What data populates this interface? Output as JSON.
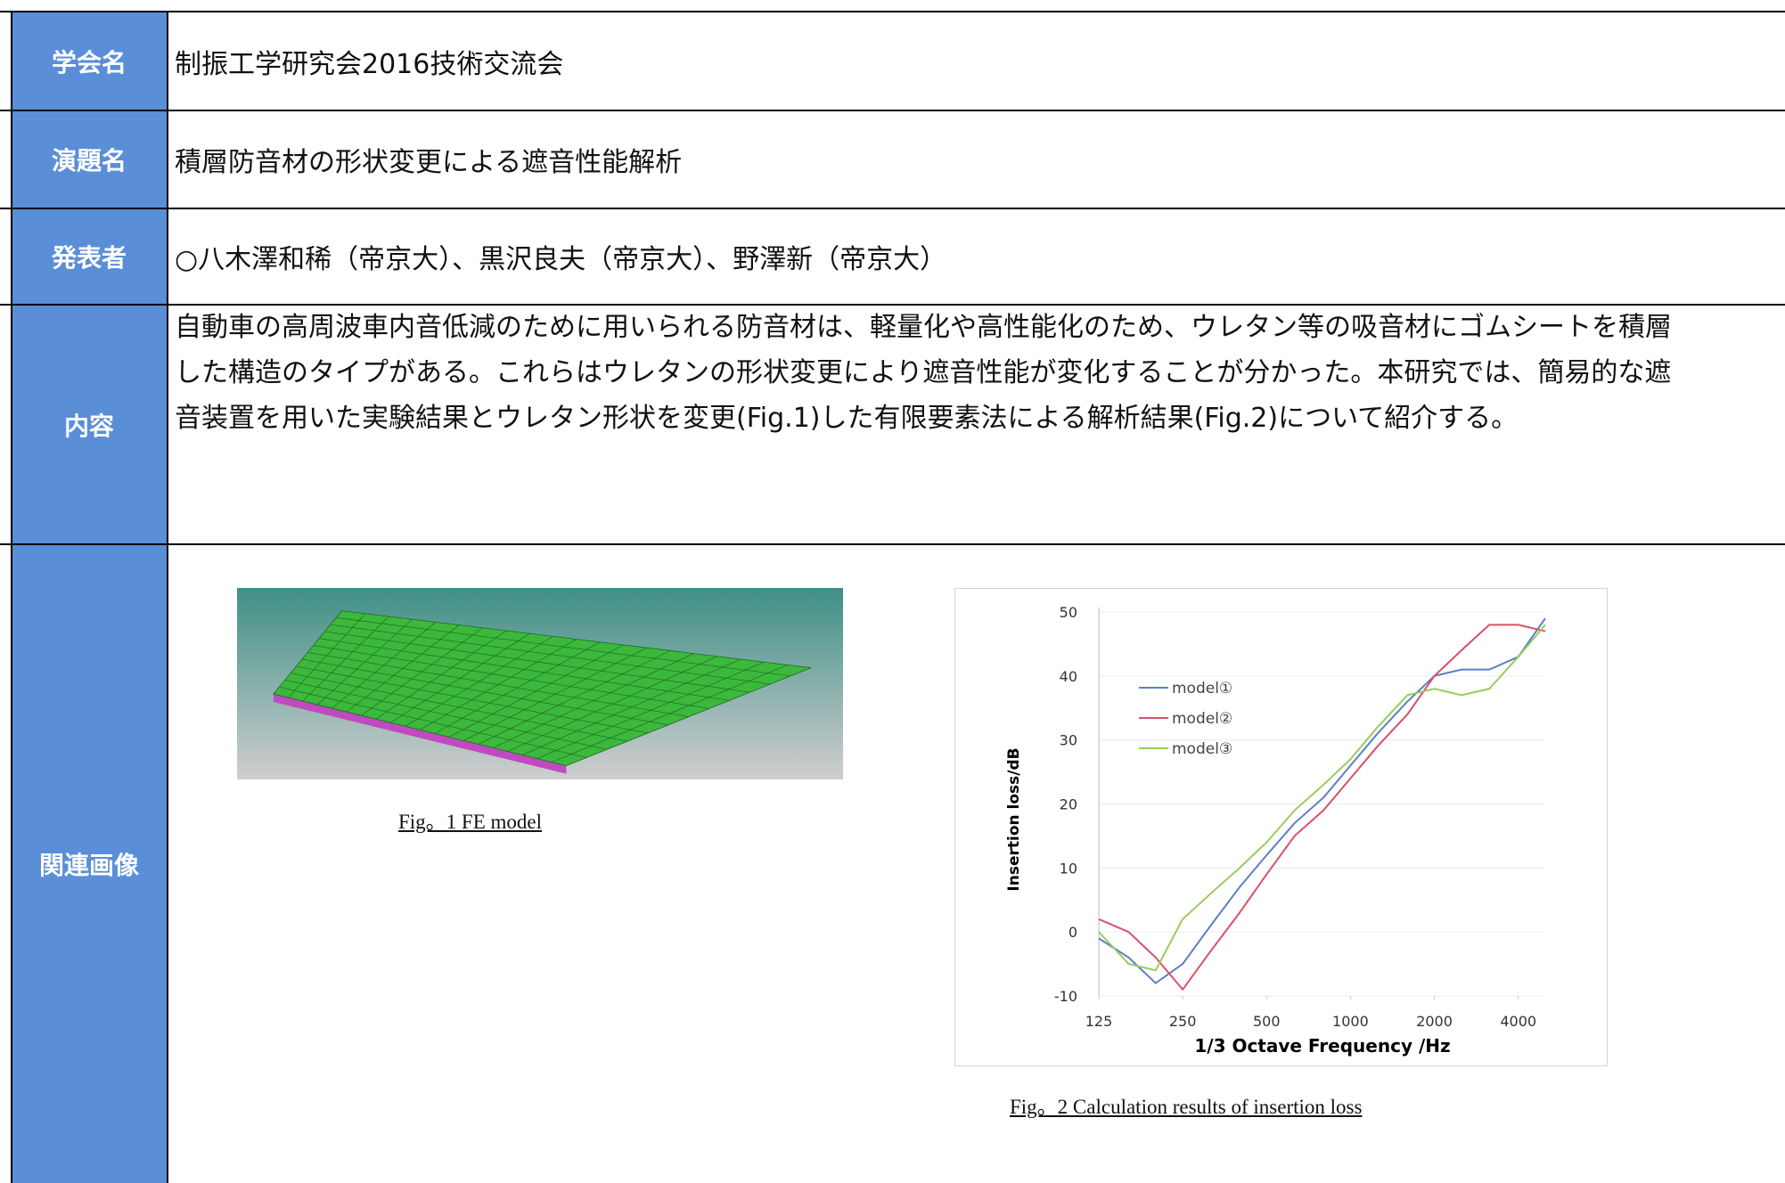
{
  "table": {
    "rows": [
      {
        "label": "学会名",
        "value": "制振工学研究会2016技術交流会"
      },
      {
        "label": "演題名",
        "value": "積層防音材の形状変更による遮音性能解析"
      },
      {
        "label": "発表者",
        "value": "○八木澤和稀（帝京大）、黒沢良夫（帝京大）、野澤新（帝京大）"
      },
      {
        "label": "内容",
        "value": [
          "自動車の高周波車内音低減のために用いられる防音材は、軽量化や高性能化のため、ウレタン等の吸音材にゴムシートを積層",
          "した構造のタイプがある。これらはウレタンの形状変更により遮音性能が変化することが分かった。本研究では、簡易的な遮",
          "音装置を用いた実験結果とウレタン形状を変更(Fig.1)した有限要素法による解析結果(Fig.2)について紹介する。"
        ]
      },
      {
        "label": "関連画像"
      }
    ]
  },
  "figures": [
    {
      "caption": "Fig。1 FE model"
    },
    {
      "caption": "Fig。2  Calculation results of insertion loss"
    }
  ],
  "chart_data": {
    "type": "line",
    "x_label": "1/3 Octave Frequency /Hz",
    "y_label": "Insertion loss/dB",
    "x": [
      125,
      160,
      200,
      250,
      315,
      400,
      500,
      630,
      800,
      1000,
      1250,
      1600,
      2000,
      2500,
      3150,
      4000,
      5000
    ],
    "xscale": "log",
    "xlim": [
      125,
      5000
    ],
    "xticks": [
      125,
      250,
      500,
      1000,
      2000,
      4000
    ],
    "ylim": [
      -10,
      50
    ],
    "yticks": [
      -10,
      0,
      10,
      20,
      30,
      40,
      50
    ],
    "grid": true,
    "legend": "upper-left",
    "series": [
      {
        "name": "model①",
        "color": "#5b7fc7",
        "values": [
          -1,
          -4,
          -8,
          -5,
          1,
          7,
          12,
          17,
          21,
          26,
          31,
          36,
          40,
          41,
          41,
          43,
          49
        ]
      },
      {
        "name": "model②",
        "color": "#d9506a",
        "values": [
          2,
          0,
          -4,
          -9,
          -3,
          3,
          9,
          15,
          19,
          24,
          29,
          34,
          40,
          44,
          48,
          48,
          47
        ]
      },
      {
        "name": "model③",
        "color": "#9acd5a",
        "values": [
          0,
          -5,
          -6,
          2,
          6,
          10,
          14,
          19,
          23,
          27,
          32,
          37,
          38,
          37,
          38,
          43,
          48
        ]
      }
    ]
  }
}
